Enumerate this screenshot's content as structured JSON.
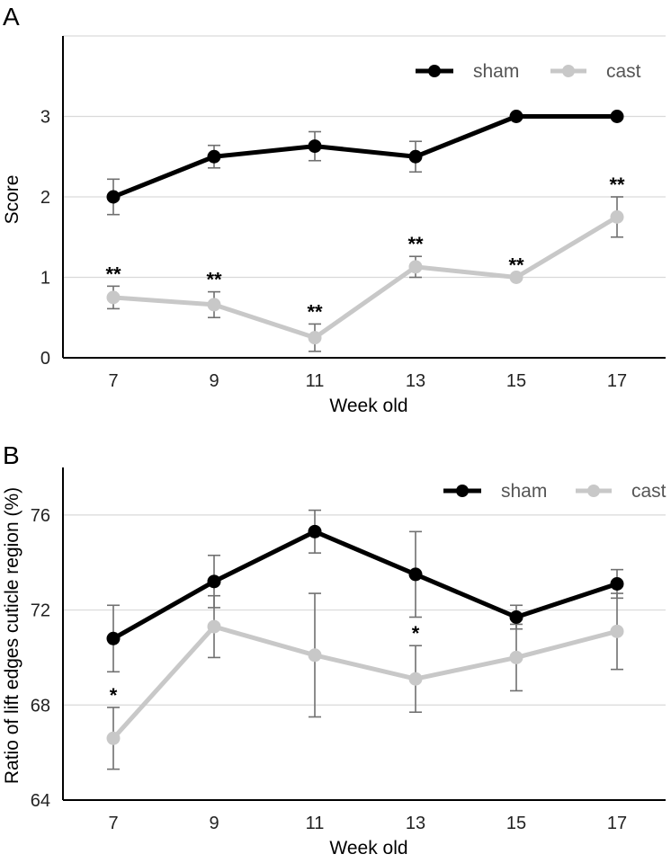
{
  "chart_data": [
    {
      "panel": "A",
      "type": "line",
      "x": [
        7,
        9,
        11,
        13,
        15,
        17
      ],
      "xlabel": "Week old",
      "ylabel": "Score",
      "ylim": [
        0,
        4
      ],
      "yticks": [
        0,
        1,
        2,
        3
      ],
      "grid": true,
      "legend": "top-right",
      "series": [
        {
          "name": "sham",
          "color": "#000000",
          "values": [
            2.0,
            2.5,
            2.63,
            2.5,
            3.0,
            3.0
          ],
          "errors": [
            0.22,
            0.14,
            0.18,
            0.19,
            0.0,
            0.0
          ],
          "annotations": [
            "",
            "",
            "",
            "",
            "",
            ""
          ]
        },
        {
          "name": "cast",
          "color": "#c8c8c8",
          "values": [
            0.75,
            0.66,
            0.25,
            1.13,
            1.0,
            1.75
          ],
          "errors": [
            0.14,
            0.16,
            0.17,
            0.13,
            0.0,
            0.25
          ],
          "annotations": [
            "**",
            "**",
            "**",
            "**",
            "**",
            "**"
          ]
        }
      ]
    },
    {
      "panel": "B",
      "type": "line",
      "x": [
        7,
        9,
        11,
        13,
        15,
        17
      ],
      "xlabel": "Week old",
      "ylabel": "Ratio of lift edges cuticle region (%)",
      "ylim": [
        64,
        78
      ],
      "yticks": [
        64,
        68,
        72,
        76
      ],
      "grid": true,
      "legend": "top-right",
      "series": [
        {
          "name": "sham",
          "color": "#000000",
          "values": [
            70.8,
            73.2,
            75.3,
            73.5,
            71.7,
            73.1
          ],
          "errors": [
            1.4,
            1.1,
            0.9,
            1.8,
            0.5,
            0.6
          ],
          "annotations": [
            "",
            "",
            "",
            "",
            "",
            ""
          ]
        },
        {
          "name": "cast",
          "color": "#c8c8c8",
          "values": [
            66.6,
            71.3,
            70.1,
            69.1,
            70.0,
            71.1
          ],
          "errors": [
            1.3,
            1.3,
            2.6,
            1.4,
            1.4,
            1.6
          ],
          "annotations": [
            "*",
            "",
            "",
            "*",
            "",
            ""
          ]
        }
      ]
    }
  ]
}
